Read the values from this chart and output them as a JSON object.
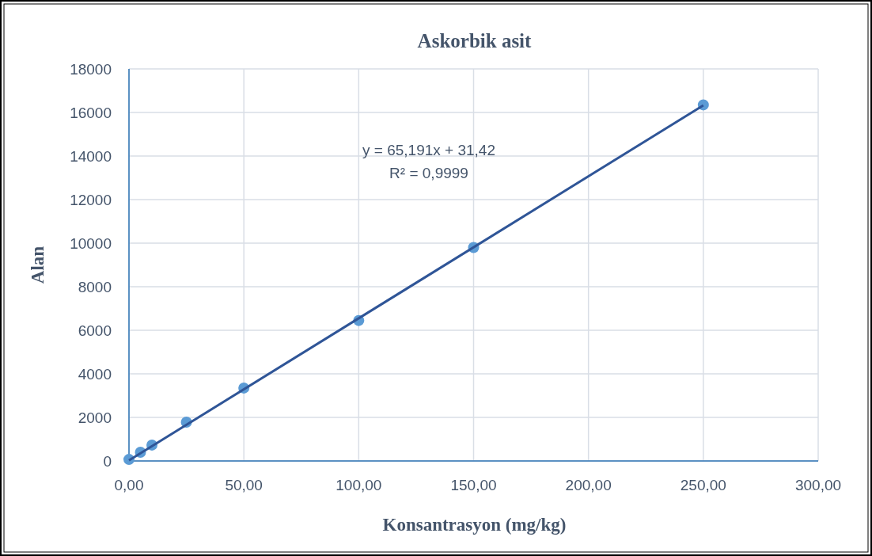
{
  "chart_data": {
    "type": "scatter",
    "title": "Askorbik asit",
    "xlabel": "Konsantrasyon (mg/kg)",
    "ylabel": "Alan",
    "xlim": [
      0,
      300
    ],
    "ylim": [
      0,
      18000
    ],
    "xticks": [
      {
        "value": 0,
        "label": "0,00"
      },
      {
        "value": 50,
        "label": "50,00"
      },
      {
        "value": 100,
        "label": "100,00"
      },
      {
        "value": 150,
        "label": "150,00"
      },
      {
        "value": 200,
        "label": "200,00"
      },
      {
        "value": 250,
        "label": "250,00"
      },
      {
        "value": 300,
        "label": "300,00"
      }
    ],
    "yticks": [
      0,
      2000,
      4000,
      6000,
      8000,
      10000,
      12000,
      14000,
      16000,
      18000
    ],
    "grid": true,
    "series": [
      {
        "marker": "circle",
        "color": "#5b9bd5",
        "x": [
          0,
          5,
          10,
          25,
          50,
          100,
          150,
          250
        ],
        "values": [
          70,
          400,
          730,
          1780,
          3350,
          6450,
          9800,
          16350
        ]
      },
      {
        "type": "line",
        "color": "#2f5597",
        "x": [
          0,
          250
        ],
        "values": [
          30,
          16330
        ]
      }
    ],
    "annotations": [
      "y = 65,191x + 31,42",
      "R² = 0,9999"
    ]
  }
}
